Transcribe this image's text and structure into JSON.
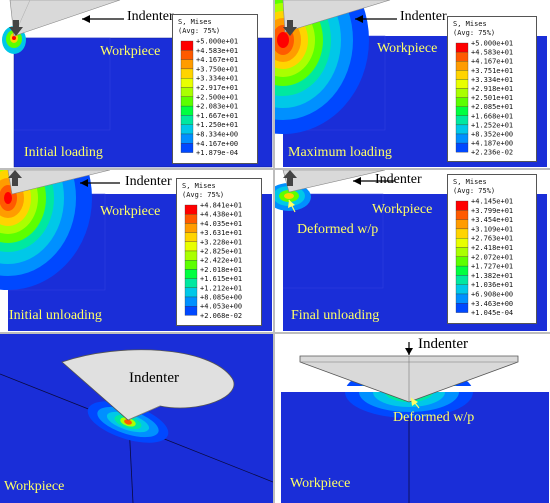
{
  "labels": {
    "indenter": "Indenter",
    "workpiece": "Workpiece",
    "deformed": "Deformed w/p"
  },
  "panels": [
    {
      "caption": "Initial loading",
      "legend": {
        "title": "S, Mises",
        "subtitle": "(Avg: 75%)",
        "values": [
          "+5.000e+01",
          "+4.583e+01",
          "+4.167e+01",
          "+3.750e+01",
          "+3.334e+01",
          "+2.917e+01",
          "+2.500e+01",
          "+2.083e+01",
          "+1.667e+01",
          "+1.250e+01",
          "+8.334e+00",
          "+4.167e+00",
          "+1.879e-04"
        ]
      }
    },
    {
      "caption": "Maximum loading",
      "legend": {
        "title": "S, Mises",
        "subtitle": "(Avg: 75%)",
        "values": [
          "+5.000e+01",
          "+4.583e+01",
          "+4.167e+01",
          "+3.751e+01",
          "+3.334e+01",
          "+2.918e+01",
          "+2.501e+01",
          "+2.085e+01",
          "+1.668e+01",
          "+1.252e+01",
          "+8.352e+00",
          "+4.187e+00",
          "+2.236e-02"
        ]
      }
    },
    {
      "caption": "Initial unloading",
      "legend": {
        "title": "S, Mises",
        "subtitle": "(Avg: 75%)",
        "values": [
          "+4.841e+01",
          "+4.438e+01",
          "+4.035e+01",
          "+3.631e+01",
          "+3.228e+01",
          "+2.825e+01",
          "+2.422e+01",
          "+2.018e+01",
          "+1.615e+01",
          "+1.212e+01",
          "+8.085e+00",
          "+4.053e+00",
          "+2.068e-02"
        ]
      }
    },
    {
      "caption": "Final unloading",
      "legend": {
        "title": "S, Mises",
        "subtitle": "(Avg: 75%)",
        "values": [
          "+4.145e+01",
          "+3.799e+01",
          "+3.454e+01",
          "+3.109e+01",
          "+2.763e+01",
          "+2.418e+01",
          "+2.072e+01",
          "+1.727e+01",
          "+1.382e+01",
          "+1.036e+01",
          "+6.908e+00",
          "+3.463e+00",
          "+1.045e-04"
        ]
      }
    }
  ],
  "colors": {
    "workpiece_blue": "#1a2ed8",
    "scale": [
      "#ff0000",
      "#ff5a00",
      "#ff9c00",
      "#ffd400",
      "#e8ff00",
      "#aaff00",
      "#5cff00",
      "#00ff40",
      "#00e8a0",
      "#00c8e8",
      "#0090ff",
      "#0048ff",
      "#0000e0"
    ],
    "label_yellow": "#ffff66",
    "indenter_gray": "#d9d9d9"
  }
}
